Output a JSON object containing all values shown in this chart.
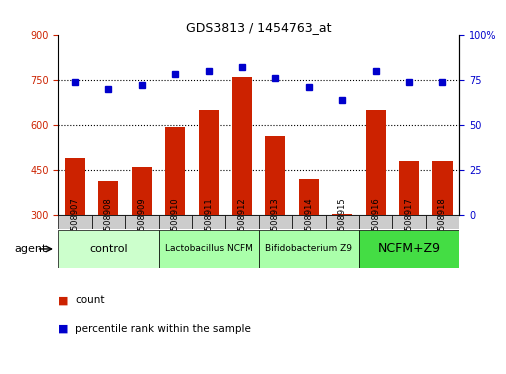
{
  "title": "GDS3813 / 1454763_at",
  "samples": [
    "GSM508907",
    "GSM508908",
    "GSM508909",
    "GSM508910",
    "GSM508911",
    "GSM508912",
    "GSM508913",
    "GSM508914",
    "GSM508915",
    "GSM508916",
    "GSM508917",
    "GSM508918"
  ],
  "counts": [
    490,
    415,
    460,
    595,
    650,
    760,
    565,
    420,
    305,
    650,
    480,
    480
  ],
  "percentiles": [
    74,
    70,
    72,
    78,
    80,
    82,
    76,
    71,
    64,
    80,
    74,
    74
  ],
  "bar_color": "#cc2200",
  "dot_color": "#0000cc",
  "ylim_left": [
    300,
    900
  ],
  "ylim_right": [
    0,
    100
  ],
  "yticks_left": [
    300,
    450,
    600,
    750,
    900
  ],
  "yticks_right": [
    0,
    25,
    50,
    75,
    100
  ],
  "ytick_labels_right": [
    "0",
    "25",
    "50",
    "75",
    "100%"
  ],
  "hlines": [
    450,
    600,
    750
  ],
  "groups": [
    {
      "label": "control",
      "start": 0,
      "end": 3,
      "color": "#ccffcc"
    },
    {
      "label": "Lactobacillus NCFM",
      "start": 3,
      "end": 6,
      "color": "#aaffaa"
    },
    {
      "label": "Bifidobacterium Z9",
      "start": 6,
      "end": 9,
      "color": "#aaffaa"
    },
    {
      "label": "NCFM+Z9",
      "start": 9,
      "end": 12,
      "color": "#44dd44"
    }
  ],
  "agent_label": "agent",
  "legend_count_label": "count",
  "legend_pct_label": "percentile rank within the sample",
  "bg_color": "#ffffff",
  "plot_bg": "#ffffff"
}
